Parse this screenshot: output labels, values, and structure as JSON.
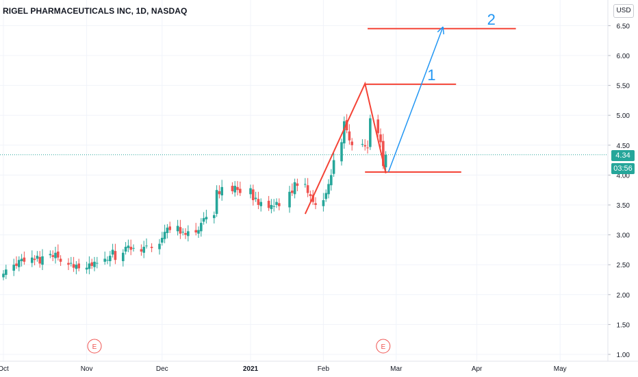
{
  "header": {
    "title": "RIGEL PHARMACEUTICALS INC, 1D, NASDAQ"
  },
  "axis": {
    "currency": "USD"
  },
  "last_price": {
    "value": "4.34",
    "countdown": "03:56"
  },
  "colors": {
    "up": "#26a69a",
    "down": "#ef5350",
    "drawing_red": "#f44336",
    "drawing_blue": "#2196f3",
    "grid": "#f0f3fa",
    "axis_text": "#131722"
  },
  "events": [
    {
      "label": "E",
      "date": "2020-11-05"
    },
    {
      "label": "E",
      "date": "2021-02-24"
    }
  ],
  "annotations": [
    {
      "label": "1",
      "type": "target-line",
      "price": 5.52,
      "from": "2021-02-17",
      "to": "2021-03-24"
    },
    {
      "label": "2",
      "type": "target-line",
      "price": 6.45,
      "from": "2021-02-18",
      "to": "2021-04-16"
    },
    {
      "label": "",
      "type": "support-line",
      "price": 4.05,
      "from": "2021-02-17",
      "to": "2021-03-26"
    },
    {
      "label": "",
      "type": "trend-line",
      "points": [
        [
          "2021-01-25",
          3.35
        ],
        [
          "2021-02-17",
          5.53
        ],
        [
          "2021-02-25",
          4.03
        ]
      ]
    },
    {
      "label": "",
      "type": "arrow",
      "points": [
        [
          "2021-02-26",
          4.05
        ],
        [
          "2021-03-19",
          6.48
        ]
      ]
    }
  ],
  "chart_data": {
    "type": "candlestick",
    "title": "RIGEL PHARMACEUTICALS INC, 1D, NASDAQ",
    "ylabel": "USD",
    "ylim": [
      1.0,
      6.75
    ],
    "y_ticks": [
      "1.00",
      "1.50",
      "2.00",
      "2.50",
      "3.00",
      "3.50",
      "4.00",
      "4.50",
      "5.00",
      "5.50",
      "6.00",
      "6.50"
    ],
    "x_ticks": [
      {
        "label": "Oct",
        "date": "2020-10-01"
      },
      {
        "label": "Nov",
        "date": "2020-11-02"
      },
      {
        "label": "Dec",
        "date": "2020-12-01"
      },
      {
        "label": "2021",
        "date": "2021-01-04"
      },
      {
        "label": "Feb",
        "date": "2021-02-01"
      },
      {
        "label": "Mar",
        "date": "2021-03-01"
      },
      {
        "label": "Apr",
        "date": "2021-04-01"
      },
      {
        "label": "May",
        "date": "2021-05-03"
      }
    ],
    "closes": [
      [
        "2020-10-01",
        2.35
      ],
      [
        "2020-10-02",
        2.42
      ],
      [
        "2020-10-05",
        2.5
      ],
      [
        "2020-10-06",
        2.48
      ],
      [
        "2020-10-07",
        2.58
      ],
      [
        "2020-10-08",
        2.6
      ],
      [
        "2020-10-09",
        2.55
      ],
      [
        "2020-10-12",
        2.62
      ],
      [
        "2020-10-13",
        2.58
      ],
      [
        "2020-10-14",
        2.65
      ],
      [
        "2020-10-15",
        2.52
      ],
      [
        "2020-10-16",
        2.64
      ],
      [
        "2020-10-19",
        2.68
      ],
      [
        "2020-10-20",
        2.63
      ],
      [
        "2020-10-21",
        2.7
      ],
      [
        "2020-10-22",
        2.62
      ],
      [
        "2020-10-23",
        2.55
      ],
      [
        "2020-10-26",
        2.5
      ],
      [
        "2020-10-27",
        2.53
      ],
      [
        "2020-10-28",
        2.45
      ],
      [
        "2020-10-29",
        2.5
      ],
      [
        "2020-10-30",
        2.44
      ],
      [
        "2020-11-02",
        2.45
      ],
      [
        "2020-11-03",
        2.52
      ],
      [
        "2020-11-04",
        2.48
      ],
      [
        "2020-11-05",
        2.55
      ],
      [
        "2020-11-06",
        2.53
      ],
      [
        "2020-11-09",
        2.6
      ],
      [
        "2020-11-10",
        2.58
      ],
      [
        "2020-11-11",
        2.65
      ],
      [
        "2020-11-12",
        2.75
      ],
      [
        "2020-11-13",
        2.58
      ],
      [
        "2020-11-16",
        2.7
      ],
      [
        "2020-11-17",
        2.8
      ],
      [
        "2020-11-18",
        2.82
      ],
      [
        "2020-11-19",
        2.75
      ],
      [
        "2020-11-20",
        2.78
      ],
      [
        "2020-11-23",
        2.72
      ],
      [
        "2020-11-24",
        2.8
      ],
      [
        "2020-11-25",
        2.82
      ],
      [
        "2020-11-27",
        2.78
      ],
      [
        "2020-11-30",
        2.85
      ],
      [
        "2020-12-01",
        2.95
      ],
      [
        "2020-12-02",
        3.05
      ],
      [
        "2020-12-03",
        3.12
      ],
      [
        "2020-12-04",
        3.08
      ],
      [
        "2020-12-07",
        3.15
      ],
      [
        "2020-12-08",
        3.02
      ],
      [
        "2020-12-09",
        3.05
      ],
      [
        "2020-12-10",
        3.0
      ],
      [
        "2020-12-11",
        3.06
      ],
      [
        "2020-12-14",
        3.04
      ],
      [
        "2020-12-15",
        3.08
      ],
      [
        "2020-12-16",
        3.2
      ],
      [
        "2020-12-17",
        3.28
      ],
      [
        "2020-12-18",
        3.3
      ],
      [
        "2020-12-21",
        3.33
      ],
      [
        "2020-12-22",
        3.75
      ],
      [
        "2020-12-23",
        3.68
      ],
      [
        "2020-12-24",
        3.8
      ],
      [
        "2020-12-28",
        3.73
      ],
      [
        "2020-12-29",
        3.82
      ],
      [
        "2020-12-30",
        3.75
      ],
      [
        "2020-12-31",
        3.7
      ],
      [
        "2021-01-04",
        3.78
      ],
      [
        "2021-01-05",
        3.58
      ],
      [
        "2021-01-06",
        3.62
      ],
      [
        "2021-01-07",
        3.5
      ],
      [
        "2021-01-08",
        3.55
      ],
      [
        "2021-01-11",
        3.45
      ],
      [
        "2021-01-12",
        3.5
      ],
      [
        "2021-01-13",
        3.48
      ],
      [
        "2021-01-14",
        3.55
      ],
      [
        "2021-01-15",
        3.48
      ],
      [
        "2021-01-19",
        3.72
      ],
      [
        "2021-01-20",
        3.7
      ],
      [
        "2021-01-21",
        3.88
      ],
      [
        "2021-01-22",
        3.82
      ],
      [
        "2021-01-25",
        3.85
      ],
      [
        "2021-01-26",
        3.7
      ],
      [
        "2021-01-27",
        3.65
      ],
      [
        "2021-01-28",
        3.55
      ],
      [
        "2021-01-29",
        3.5
      ],
      [
        "2021-02-01",
        3.58
      ],
      [
        "2021-02-02",
        3.7
      ],
      [
        "2021-02-03",
        3.85
      ],
      [
        "2021-02-04",
        4.0
      ],
      [
        "2021-02-05",
        4.25
      ],
      [
        "2021-02-08",
        4.55
      ],
      [
        "2021-02-09",
        4.9
      ],
      [
        "2021-02-10",
        4.75
      ],
      [
        "2021-02-11",
        4.58
      ],
      [
        "2021-02-12",
        4.5
      ],
      [
        "2021-02-16",
        4.52
      ],
      [
        "2021-02-17",
        4.48
      ],
      [
        "2021-02-18",
        4.45
      ],
      [
        "2021-02-19",
        4.95
      ],
      [
        "2021-02-22",
        4.7
      ],
      [
        "2021-02-23",
        4.55
      ],
      [
        "2021-02-24",
        4.15
      ],
      [
        "2021-02-25",
        4.34
      ]
    ]
  }
}
